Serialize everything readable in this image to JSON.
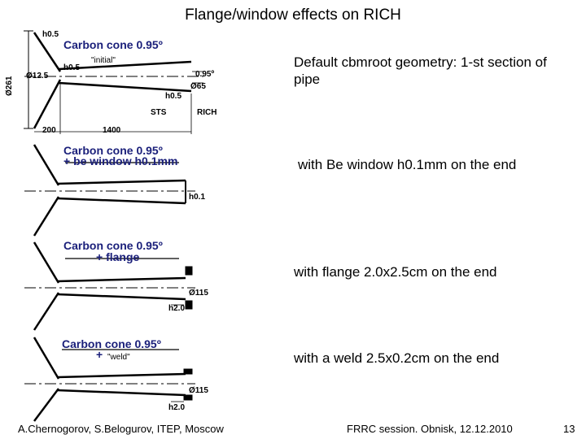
{
  "slide": {
    "title": "Flange/window effects on RICH",
    "page_number": "13"
  },
  "footer": {
    "authors": "A.Chernogorov, S.Belogurov, ITEP, Moscow",
    "event": "FRRC session. Obnisk, 12.12.2010"
  },
  "descriptions": [
    "Default cbmroot geometry: 1-st section of pipe",
    "with Be window h0.1mm on the end",
    "with flange 2.0x2.5cm on the end",
    "with a weld  2.5x0.2cm on the end"
  ],
  "panels": {
    "p1": {
      "caption": "Carbon cone 0.95º",
      "subcaption": "\"initial\"",
      "dim_h05_top": "h0.5",
      "dim_diam261": "Ø261",
      "dim_diam125": "Ø12.5",
      "dim_h05_mid": "h0.5",
      "dim_angle": "0.95º",
      "dim_diam65": "Ø65",
      "dim_h05_low": "h0.5",
      "label_sts": "STS",
      "label_rich": "RICH",
      "dim_200": "200",
      "dim_1400": "1400"
    },
    "p2": {
      "caption": "Carbon cone 0.95º",
      "subcaption": "+ be window h0.1mm",
      "dim_h01": "h0.1"
    },
    "p3": {
      "caption": "Carbon cone 0.95º",
      "subcaption": "+ flange",
      "dim_diam115": "Ø115",
      "dim_h20": "h2.0"
    },
    "p4": {
      "caption": "Carbon cone 0.95º",
      "plus": "+",
      "subcaption": "\"weld\"",
      "dim_diam115": "Ø115",
      "dim_h20": "h2.0"
    }
  },
  "colors": {
    "caption": "#1a1f7a",
    "drawing": "#000000"
  }
}
